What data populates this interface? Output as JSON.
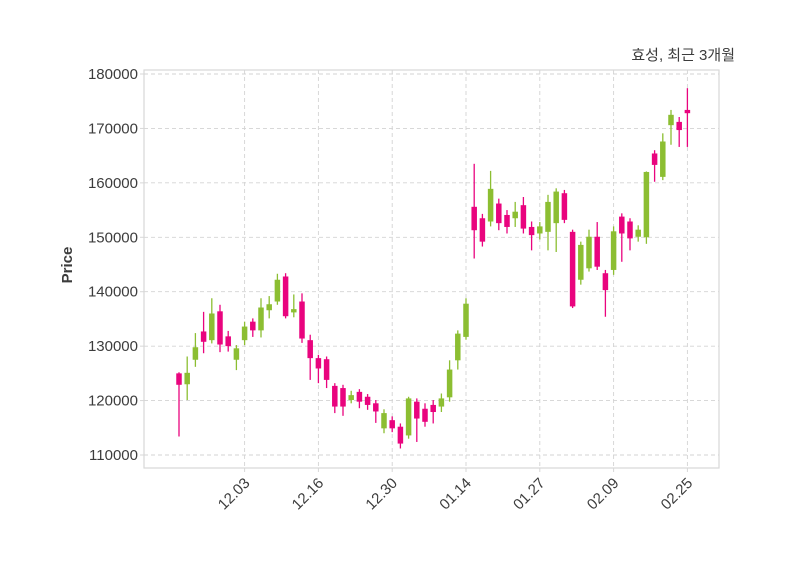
{
  "header": {
    "title": "효성, 최근 3개월"
  },
  "chart_data": {
    "type": "candlestick",
    "title": "효성, 최근 3개월",
    "xlabel": "",
    "ylabel": "Price",
    "grid": true,
    "legend": "none",
    "ylim": [
      107600,
      180700
    ],
    "y_ticks": [
      110000,
      120000,
      130000,
      140000,
      150000,
      160000,
      170000,
      180000
    ],
    "x_tick_labels": [
      "12.03",
      "12.16",
      "12.30",
      "01.14",
      "01.27",
      "02.09",
      "02.25"
    ],
    "x_tick_indices": [
      8,
      17,
      26,
      35,
      44,
      53,
      62
    ],
    "colors": {
      "up": "#8cbe32",
      "down": "#e9047e",
      "grid": "#d3d3d3",
      "frame": "#d7d7d7",
      "text": "#3c3c3c"
    },
    "candles_format": [
      "open",
      "high",
      "low",
      "close"
    ],
    "candles": [
      [
        125000,
        125200,
        113400,
        122900
      ],
      [
        123000,
        128100,
        120100,
        125100
      ],
      [
        127500,
        132400,
        126200,
        129800
      ],
      [
        132700,
        136300,
        128700,
        130800
      ],
      [
        131100,
        138800,
        130500,
        136000
      ],
      [
        136400,
        137600,
        128900,
        130300
      ],
      [
        131800,
        132800,
        129000,
        130000
      ],
      [
        127500,
        130200,
        125600,
        129600
      ],
      [
        131100,
        134500,
        130200,
        133600
      ],
      [
        134500,
        135100,
        131700,
        132900
      ],
      [
        132900,
        138800,
        131600,
        137100
      ],
      [
        136600,
        139200,
        135100,
        137700
      ],
      [
        138200,
        143300,
        137600,
        142200
      ],
      [
        142800,
        143400,
        135100,
        135500
      ],
      [
        136200,
        139500,
        135300,
        136800
      ],
      [
        138200,
        139700,
        130600,
        131400
      ],
      [
        131100,
        132100,
        123800,
        127800
      ],
      [
        127800,
        128400,
        123200,
        125900
      ],
      [
        127600,
        128100,
        122300,
        123800
      ],
      [
        122700,
        123200,
        117700,
        118900
      ],
      [
        122300,
        122900,
        117200,
        118900
      ],
      [
        120100,
        121800,
        119500,
        121000
      ],
      [
        121600,
        122100,
        118600,
        119800
      ],
      [
        120700,
        121200,
        118300,
        119200
      ],
      [
        119500,
        120100,
        115900,
        118000
      ],
      [
        114900,
        118400,
        114000,
        117700
      ],
      [
        116400,
        117100,
        114200,
        114900
      ],
      [
        115200,
        115800,
        111200,
        112100
      ],
      [
        113600,
        120700,
        113000,
        120400
      ],
      [
        119800,
        120400,
        112400,
        116700
      ],
      [
        118500,
        119500,
        115200,
        116100
      ],
      [
        119200,
        120100,
        115800,
        117900
      ],
      [
        118900,
        121300,
        117900,
        120400
      ],
      [
        120600,
        127400,
        119800,
        125700
      ],
      [
        127400,
        132900,
        125700,
        132300
      ],
      [
        131700,
        138800,
        131200,
        137800
      ],
      [
        155600,
        163500,
        146100,
        151300
      ],
      [
        153500,
        154300,
        148300,
        149200
      ],
      [
        152900,
        162200,
        152000,
        158900
      ],
      [
        156200,
        157100,
        151300,
        152600
      ],
      [
        154100,
        155000,
        150700,
        151900
      ],
      [
        153500,
        156500,
        151900,
        154700
      ],
      [
        155900,
        157400,
        150700,
        151600
      ],
      [
        151900,
        152900,
        147600,
        150400
      ],
      [
        150700,
        152800,
        149600,
        152000
      ],
      [
        151000,
        157800,
        147600,
        156500
      ],
      [
        152600,
        159000,
        147300,
        158400
      ],
      [
        158100,
        158700,
        152600,
        153200
      ],
      [
        151000,
        151400,
        137000,
        137300
      ],
      [
        142200,
        149200,
        141300,
        148600
      ],
      [
        144300,
        151400,
        143700,
        150100
      ],
      [
        150100,
        152800,
        144000,
        144600
      ],
      [
        143400,
        144000,
        135400,
        140300
      ],
      [
        144000,
        152000,
        143100,
        151100
      ],
      [
        153800,
        154400,
        145500,
        150700
      ],
      [
        152900,
        153500,
        147600,
        149800
      ],
      [
        150100,
        152200,
        149200,
        151400
      ],
      [
        150000,
        162100,
        148800,
        162000
      ],
      [
        165400,
        166000,
        160200,
        163300
      ],
      [
        161100,
        169100,
        160500,
        167600
      ],
      [
        170600,
        173400,
        167000,
        172500
      ],
      [
        171200,
        172100,
        166600,
        169700
      ],
      [
        173400,
        177400,
        166600,
        172800
      ]
    ]
  }
}
